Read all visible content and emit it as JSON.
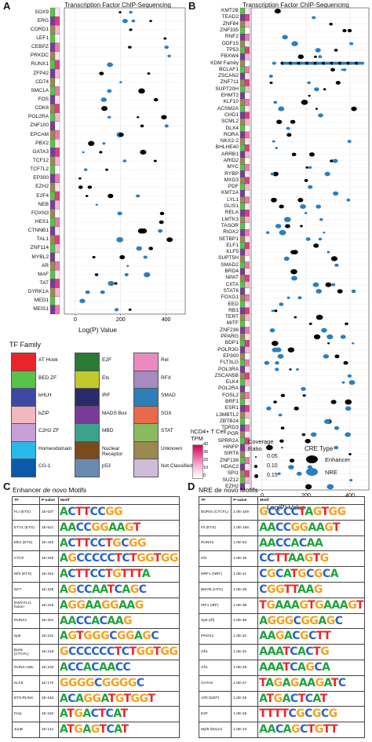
{
  "panelA": {
    "letter": "A",
    "title": "Transcription Factor ChIP-Sequencing",
    "xlabel": "Log(P) Value",
    "xticks": [
      "0",
      "200",
      "400"
    ],
    "factors": [
      "SOX9",
      "ERG",
      "CORD1",
      "LEF1",
      "CEBPZ",
      "PRKDC",
      "RUNX1",
      "ZFP42",
      "CD74",
      "SMC1A",
      "FOS",
      "CDK6",
      "POL2RA",
      "ZNF100",
      "EPCAM",
      "PBX2",
      "GATA3",
      "TCF12",
      "TCF7L2",
      "EP300",
      "EZH2",
      "E2F4",
      "NEB",
      "FOXN3",
      "HES1",
      "CTNNB1",
      "TAL1",
      "ZNF114",
      "MYBL2",
      "AR",
      "MAF",
      "TAT",
      "DYRK1A",
      "MED1",
      "MEIS1"
    ]
  },
  "panelB": {
    "letter": "B",
    "title": "Transcription Factor ChIP-Sequencing",
    "xlabel": "Log(P) Value",
    "xticks": [
      "0",
      "200",
      "400"
    ],
    "factors": [
      "KMT2B",
      "TEAD2",
      "ZNF84",
      "ZNF335",
      "RNF2",
      "GDF15",
      "TP53",
      "FBXW4",
      "KDM Family",
      "BCLAF1",
      "ZSCAN2",
      "ZNF711",
      "SUPT20H",
      "EHMT2",
      "KLF10",
      "ACSM2A",
      "CHD1",
      "SCML2",
      "DLX4",
      "RORA",
      "NKX2-2",
      "BHLHE40",
      "ARRB1",
      "ARID2",
      "MYC",
      "RYBP",
      "MXD3",
      "PDF",
      "KMT2A",
      "LYL1",
      "GLIS1",
      "RELA",
      "LMTK3",
      "TASOR",
      "RIOX2",
      "SETBP1",
      "ELF1",
      "KLF5",
      "SUPT5H",
      "SMAD2",
      "BRD4",
      "NPAT",
      "CIITA",
      "STAT6",
      "FOXG1",
      "EED",
      "RB1",
      "TERT",
      "MITF",
      "ZNF236",
      "PPARG",
      "BDP1",
      "POLR3G",
      "EP300",
      "FLT3LG",
      "POL3RA",
      "ZSCAN5B",
      "ELK4",
      "POL2RA",
      "FOSL2",
      "BRF1",
      "ESR1",
      "L3MBTL2",
      "ZBTB24",
      "TDRD3",
      "PGR",
      "SPRR2A",
      "HINFP",
      "SIRT6",
      "ZNF138",
      "HDAC2",
      "SPI1",
      "SUZ12",
      "EZH2"
    ]
  },
  "legend": {
    "title": "TF Family",
    "families": [
      {
        "name": "AT Hook",
        "color": "#e8262a"
      },
      {
        "name": "E2F",
        "color": "#2a7a33"
      },
      {
        "name": "Rel",
        "color": "#e88cc0"
      },
      {
        "name": "BED ZF",
        "color": "#58c24b"
      },
      {
        "name": "Ets",
        "color": "#c3c82e"
      },
      {
        "name": "RFX",
        "color": "#a58bc0"
      },
      {
        "name": "bHLH",
        "color": "#3d4aa3"
      },
      {
        "name": "IRF",
        "color": "#2b2b6a"
      },
      {
        "name": "SMAD",
        "color": "#2c7fb8"
      },
      {
        "name": "bZIP",
        "color": "#f2b8c0"
      },
      {
        "name": "MADS Box",
        "color": "#7a3a9a"
      },
      {
        "name": "SOX",
        "color": "#e86a4a"
      },
      {
        "name": "C2H2 ZF",
        "color": "#c8a0d8"
      },
      {
        "name": "MBD",
        "color": "#3aa38a"
      },
      {
        "name": "STAT",
        "color": "#8aba60"
      },
      {
        "name": "Homeodomain",
        "color": "#2ab8e8"
      },
      {
        "name": "Nuclear Receptor",
        "color": "#7a4a20"
      },
      {
        "name": "Unknown",
        "color": "#9a8a50"
      },
      {
        "name": "CG-1",
        "color": "#0a5aa8"
      },
      {
        "name": "p53",
        "color": "#6a8ab0"
      },
      {
        "name": "Not Classified",
        "color": "#cfbcd8"
      }
    ],
    "tpm_title": "hCD4+ T Cell TPM",
    "tpm_ticks": [
      "0",
      "10",
      "20",
      "30",
      "40"
    ],
    "coverage_title": "Coverage Ratio",
    "coverage_ticks": [
      "0.05",
      "0.10",
      "0.15"
    ],
    "cre_title": "CRE Type",
    "cre": [
      {
        "name": "Enhancer",
        "color": "#000000"
      },
      {
        "name": "NRE",
        "color": "#2a7fc1"
      }
    ]
  },
  "panelC": {
    "letter": "C",
    "title_pre": "Enhancer ",
    "title_em": "de novo",
    "title_post": " Motifs",
    "headers": [
      "TF",
      "P-value",
      "Motif"
    ],
    "rows": [
      {
        "tf": "FLI (ETS)",
        "p": "1E-637",
        "motif": "ACTTCCGG"
      },
      {
        "tf": "ETV1 (ETS)",
        "p": "1E-521",
        "motif": "AACCGGAAGT"
      },
      {
        "tf": "Elk2 (ETS)",
        "p": "1E-442",
        "motif": "ACTTCCTGCGG"
      },
      {
        "tf": "CTCF",
        "p": "1E-349",
        "motif": "AGCCCCCTCTGGTGG"
      },
      {
        "tf": "Elf4 (ETS)",
        "p": "1E-342",
        "motif": "ACTTCCTGTTTA"
      },
      {
        "tf": "NFY",
        "p": "1E-328",
        "motif": "AGCCAATCAGC"
      },
      {
        "tf": "EWS:FLI1 fusion",
        "p": "1E-316",
        "motif": "AGGAAGGAAG"
      },
      {
        "tf": "RUNX1",
        "p": "1E-301",
        "motif": "AACCACAAG"
      },
      {
        "tf": "Sp5",
        "p": "1E-231",
        "motif": "AGTGGGCGGAGC"
      },
      {
        "tf": "Boris (CTCFL)",
        "p": "1E-218",
        "motif": "GCCCCCCTCTGGTGG"
      },
      {
        "tf": "RUNX-AML",
        "p": "1E-193",
        "motif": "ACCACAACC"
      },
      {
        "tf": "KLF5",
        "p": "1E-170",
        "motif": "GGGGCGGGGC"
      },
      {
        "tf": "ETS:RUNX",
        "p": "1E-163",
        "motif": "ACAGGATGTGGT"
      },
      {
        "tf": "Fra1",
        "p": "1E-152",
        "motif": "ATGACTCAT"
      },
      {
        "tf": "JunB",
        "p": "1E-141",
        "motif": "ATGAGTCAT"
      }
    ]
  },
  "panelD": {
    "letter": "D",
    "title": "NRE de novo Motifs",
    "headers": [
      "TF",
      "P-value",
      "Motif"
    ],
    "rows": [
      {
        "tf": "BORIS (CTCFL)",
        "p": "1.0E-159",
        "motif": "GCCCCTAGTGG"
      },
      {
        "tf": "Fli (ETS)",
        "p": "1.0E-158",
        "motif": "AACCGGAAGT"
      },
      {
        "tf": "RUNX2",
        "p": "1.0E-63",
        "motif": "AACCACAA"
      },
      {
        "tf": "Isl1",
        "p": "1.0E-45",
        "motif": "CCTTAAGTG"
      },
      {
        "tf": "NRF1 (NRF)",
        "p": "1.0E-41",
        "motif": "CGCATGCGCA"
      },
      {
        "tf": "BMYB (HTH)",
        "p": "1.0E-39",
        "motif": "CGGTTAAG"
      },
      {
        "tf": "IRF1 (IRF)",
        "p": "1.0E-38",
        "motif": "TGAAAGTGAAAGT"
      },
      {
        "tf": "Sp5 (Zf)",
        "p": "1.0E-35",
        "motif": "AGGGCGGAGC"
      },
      {
        "tf": "PROX1",
        "p": "1.0E-31",
        "motif": "AAGACGCTT"
      },
      {
        "tf": "Gfi1",
        "p": "1.0E-31",
        "motif": "AAATCACTG"
      },
      {
        "tf": "Gfi1",
        "p": "1.0E-28",
        "motif": "AAATCAGCA"
      },
      {
        "tf": "GATA6",
        "p": "1.0E-27",
        "motif": "TAGAGAAGATC"
      },
      {
        "tf": "Atf3 (bZIP)",
        "p": "1.0E-26",
        "motif": "ATGACTCAT"
      },
      {
        "tf": "E2F",
        "p": "1.0E-26",
        "motif": "TTTTCGCGCG"
      },
      {
        "tf": "Myf5 (bHLH)",
        "p": "1.0E-23",
        "motif": "AACAGCTGTT"
      }
    ]
  }
}
